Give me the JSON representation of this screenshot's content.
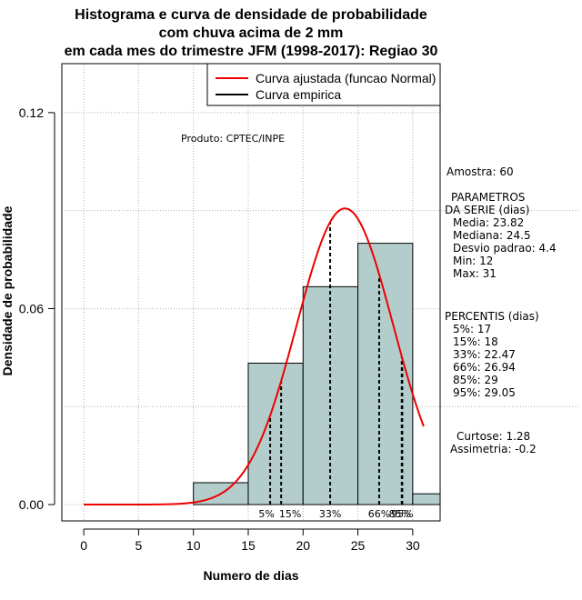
{
  "chart_data": {
    "type": "bar",
    "title_lines": [
      "Histograma e curva de densidade de probabilidade",
      "com chuva acima de 2 mm",
      "em cada mes do trimestre JFM (1998-2017): Regiao 30"
    ],
    "xlabel": "Numero de dias",
    "ylabel": "Densidade de probabilidade",
    "xlim": [
      -2,
      32.5
    ],
    "ylim": [
      -0.005,
      0.135
    ],
    "xticks": [
      "0",
      "5",
      "10",
      "15",
      "20",
      "25",
      "30"
    ],
    "yticks": [
      "0.00",
      "0.06",
      "0.12"
    ],
    "grid": true,
    "bins": [
      {
        "from": 10,
        "to": 15,
        "density": 0.0067
      },
      {
        "from": 15,
        "to": 20,
        "density": 0.0433
      },
      {
        "from": 20,
        "to": 25,
        "density": 0.0667
      },
      {
        "from": 25,
        "to": 30,
        "density": 0.08
      },
      {
        "from": 30,
        "to": 35,
        "density": 0.0033
      }
    ],
    "normal_curve": {
      "mean": 23.82,
      "sd": 4.4,
      "x_from": 0,
      "x_to": 31
    },
    "percentile_lines": [
      {
        "label": "5%",
        "x": 17
      },
      {
        "label": "15%",
        "x": 18
      },
      {
        "label": "33%",
        "x": 22.47
      },
      {
        "label": "66%",
        "x": 26.94
      },
      {
        "label": "85%",
        "x": 29
      },
      {
        "label": "95%",
        "x": 29.05
      }
    ],
    "legend": {
      "position": "top-right",
      "items": [
        {
          "label": "Curva ajustada (funcao Normal)",
          "color": "#ee0000"
        },
        {
          "label": "Curva empirica",
          "color": "#000000"
        }
      ]
    },
    "annotation": "Produto: CPTEC/INPE",
    "colors": {
      "bar_fill": "#b3cdcd",
      "curve": "#ee0000",
      "grid": "#b0b0b0"
    }
  },
  "side_panel": {
    "amostra": "Amostra: 60",
    "params_title_1": "PARAMETROS",
    "params_title_2": "DA SERIE (dias)",
    "params": [
      "Media: 23.82",
      "Mediana: 24.5",
      "Desvio padrao: 4.4",
      "Min: 12",
      "Max: 31"
    ],
    "percentis_title": "PERCENTIS (dias)",
    "percentis": [
      "5%: 17",
      "15%: 18",
      "33%: 22.47",
      "66%: 26.94",
      "85%: 29",
      "95%: 29.05"
    ],
    "curtose": "Curtose: 1.28",
    "assimetria": "Assimetria: -0.2"
  }
}
